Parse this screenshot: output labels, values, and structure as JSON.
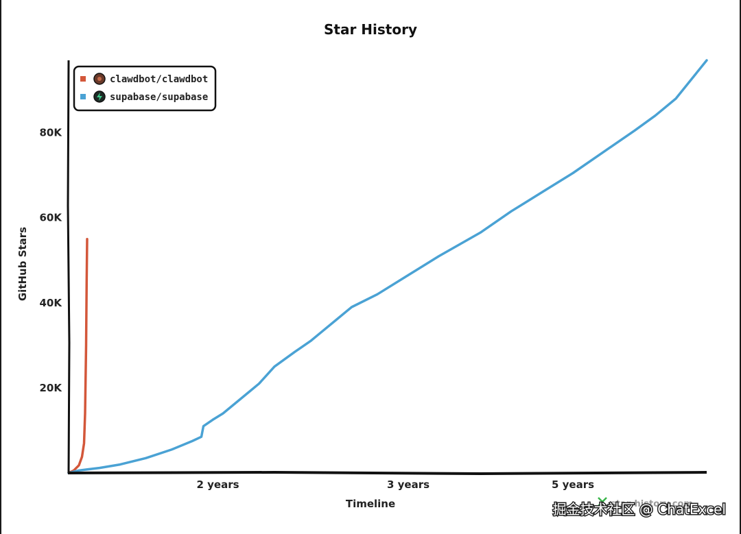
{
  "chart_data": {
    "type": "line",
    "title": "Star History",
    "xlabel": "Timeline",
    "ylabel": "GitHub Stars",
    "xlim": [
      0,
      6.2
    ],
    "ylim": [
      0,
      97000
    ],
    "x_ticks": [
      {
        "value": 1.45,
        "label": "2 years"
      },
      {
        "value": 3.3,
        "label": "3 years"
      },
      {
        "value": 4.9,
        "label": "5 years"
      }
    ],
    "y_ticks": [
      {
        "value": 20000,
        "label": "20K"
      },
      {
        "value": 40000,
        "label": "40K"
      },
      {
        "value": 60000,
        "label": "60K"
      },
      {
        "value": 80000,
        "label": "80K"
      }
    ],
    "grid": false,
    "legend_position": "top-left",
    "series": [
      {
        "name": "clawdbot/clawdbot",
        "color": "#d3573a",
        "icon": "clawdbot-avatar-icon",
        "x": [
          0,
          0.05,
          0.1,
          0.13,
          0.15,
          0.16,
          0.17,
          0.175,
          0.18
        ],
        "y": [
          0,
          600,
          1800,
          3800,
          7000,
          14000,
          30000,
          45000,
          55000
        ]
      },
      {
        "name": "supabase/supabase",
        "color": "#4aa2d4",
        "icon": "supabase-avatar-icon",
        "x": [
          0,
          0.1,
          0.3,
          0.5,
          0.75,
          1.0,
          1.2,
          1.29,
          1.31,
          1.4,
          1.5,
          1.75,
          1.85,
          2.0,
          2.2,
          2.35,
          2.45,
          2.6,
          2.75,
          3.0,
          3.3,
          3.6,
          4.0,
          4.3,
          4.6,
          4.9,
          5.2,
          5.5,
          5.7,
          5.9,
          6.2
        ],
        "y": [
          0,
          600,
          1200,
          2000,
          3500,
          5500,
          7500,
          8500,
          11000,
          12500,
          14000,
          19000,
          21000,
          25000,
          28500,
          31000,
          33000,
          36000,
          39000,
          42000,
          46500,
          51000,
          56500,
          61500,
          66000,
          70500,
          75500,
          80500,
          84000,
          88000,
          97000
        ]
      }
    ]
  },
  "watermark": {
    "brand_text": "star-history.com",
    "overlay_text": "掘金技术社区 @ ChatExcel"
  }
}
